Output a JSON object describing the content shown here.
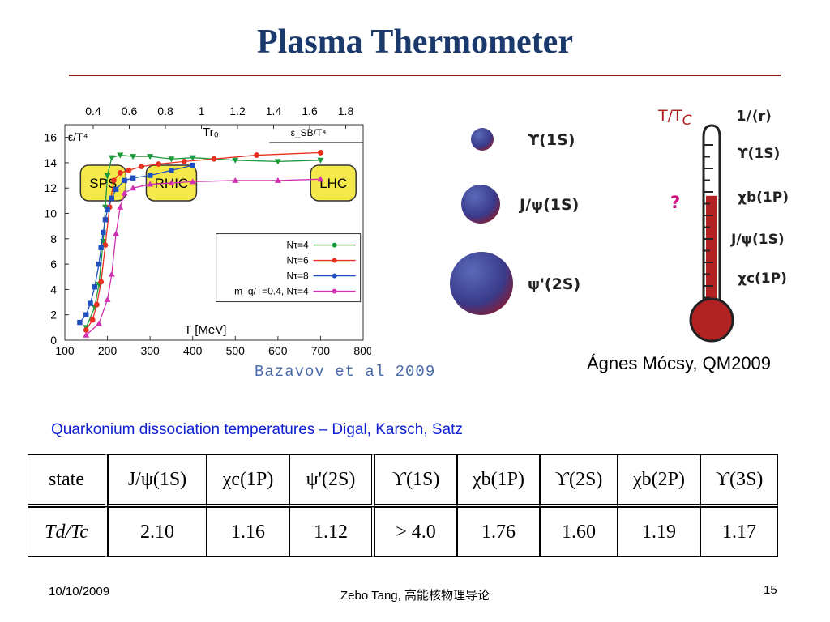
{
  "slide": {
    "title": "Plasma Thermometer",
    "credit_chart": "Bazavov et al 2009",
    "credit_author": "Ágnes Mócsy, QM2009",
    "subtitle": "Quarkonium dissociation temperatures – Digal, Karsch, Satz"
  },
  "chart_data": {
    "type": "line",
    "ylabel": "ε/T⁴",
    "xlabel": "T [MeV]",
    "top_axis_label": "Tr₀",
    "x_ticks": [
      100,
      200,
      300,
      400,
      500,
      600,
      700,
      800
    ],
    "y_ticks": [
      0,
      2,
      4,
      6,
      8,
      10,
      12,
      14,
      16
    ],
    "top_ticks": [
      "0.4",
      "0.6",
      "0.8",
      "1",
      "1.2",
      "1.4",
      "1.6",
      "1.8"
    ],
    "xlim": [
      100,
      800
    ],
    "ylim": [
      0,
      17
    ],
    "sb_label": "ε_SB/T⁴",
    "sb_value": 15.6,
    "regions": [
      "SPS",
      "RHIC",
      "LHC"
    ],
    "legend_position": "lower-right",
    "series": [
      {
        "name": "Nτ=4",
        "color": "#1a9a3a",
        "marker": "triangle-down",
        "x": [
          150,
          170,
          180,
          190,
          195,
          200,
          210,
          230,
          260,
          300,
          350,
          400,
          500,
          600,
          700
        ],
        "y": [
          1.0,
          2.6,
          4.4,
          7.8,
          10.5,
          13.0,
          14.4,
          14.6,
          14.5,
          14.5,
          14.3,
          14.4,
          14.2,
          14.1,
          14.2
        ]
      },
      {
        "name": "Nτ=6",
        "color": "#e83020",
        "marker": "circle",
        "x": [
          150,
          165,
          175,
          185,
          195,
          205,
          215,
          230,
          250,
          280,
          320,
          380,
          450,
          550,
          700
        ],
        "y": [
          0.8,
          1.6,
          2.8,
          4.6,
          7.5,
          10.5,
          12.6,
          13.2,
          13.4,
          13.7,
          13.9,
          14.1,
          14.3,
          14.6,
          14.8
        ]
      },
      {
        "name": "Nτ=8",
        "color": "#2050c0",
        "marker": "square",
        "x": [
          135,
          150,
          160,
          170,
          180,
          185,
          190,
          195,
          200,
          210,
          220,
          240,
          260,
          300,
          350,
          400
        ],
        "y": [
          1.4,
          2.0,
          2.9,
          4.2,
          6.0,
          7.3,
          8.5,
          9.5,
          10.3,
          11.2,
          11.9,
          12.6,
          12.8,
          13.0,
          13.4,
          13.8
        ]
      },
      {
        "name": "m_q/T=0.4, Nτ=4",
        "color": "#d030b0",
        "marker": "triangle-up",
        "x": [
          150,
          180,
          200,
          210,
          220,
          230,
          240,
          260,
          300,
          350,
          400,
          500,
          600,
          700
        ],
        "y": [
          0.4,
          1.3,
          3.2,
          5.2,
          8.4,
          10.5,
          11.6,
          12.0,
          12.3,
          12.4,
          12.5,
          12.6,
          12.6,
          12.7
        ]
      }
    ]
  },
  "quarkonia": [
    {
      "label": "ϒ(1S)"
    },
    {
      "label": "J/ψ(1S)"
    },
    {
      "label": "ψ'(2S)"
    }
  ],
  "thermometer": {
    "axis_label": "T/T",
    "axis_sub": "C",
    "right_header": "1/⟨r⟩",
    "question": "?",
    "fill_fraction": 0.65,
    "states": [
      "ϒ(1S)",
      "χb(1P)",
      "J/ψ(1S)",
      "χc(1P)"
    ]
  },
  "table": {
    "row1_header": "state",
    "row2_header": "Td/Tc",
    "columns": [
      {
        "state": "J/ψ(1S)",
        "td": "2.10"
      },
      {
        "state": "χc(1P)",
        "td": "1.16"
      },
      {
        "state": "ψ'(2S)",
        "td": "1.12"
      },
      {
        "state": "ϒ(1S)",
        "td": "> 4.0"
      },
      {
        "state": "χb(1P)",
        "td": "1.76"
      },
      {
        "state": "ϒ(2S)",
        "td": "1.60"
      },
      {
        "state": "χb(2P)",
        "td": "1.19"
      },
      {
        "state": "ϒ(3S)",
        "td": "1.17"
      }
    ]
  },
  "footer": {
    "date": "10/10/2009",
    "center": "Zebo Tang, 高能核物理导论",
    "page": "15"
  }
}
